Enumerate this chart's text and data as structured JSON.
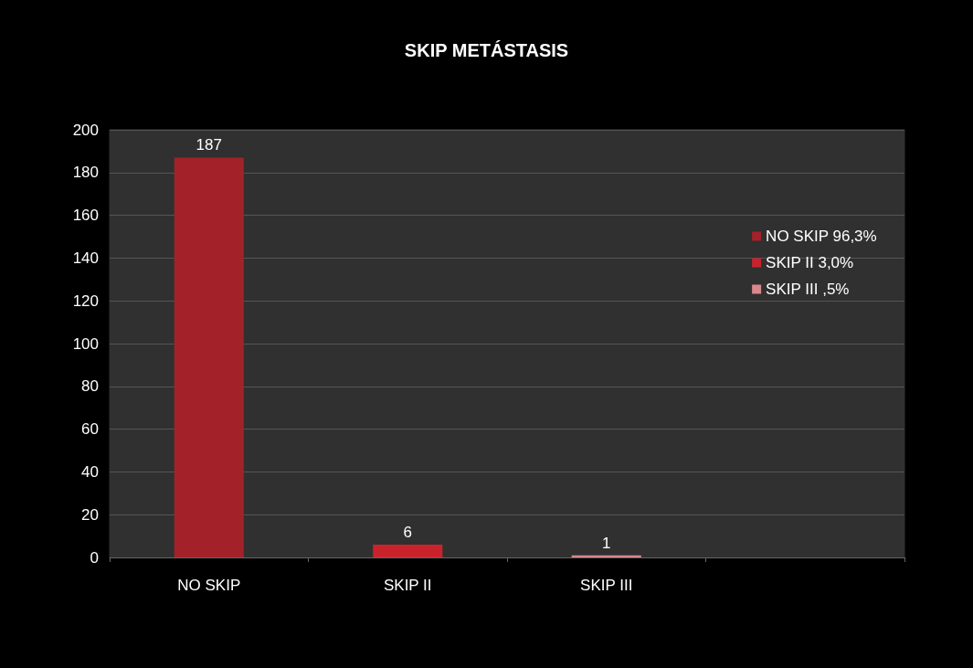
{
  "chart_data": {
    "type": "bar",
    "title": "SKIP METÁSTASIS",
    "categories": [
      "NO SKIP",
      "SKIP II",
      "SKIP III",
      null
    ],
    "stacked": true,
    "series": [
      {
        "name": "NO SKIP 96,3%",
        "color": "#a32229",
        "values": [
          187,
          null,
          null,
          null
        ]
      },
      {
        "name": "SKIP II 3,0%",
        "color": "#c8232c",
        "values": [
          null,
          6,
          null,
          null
        ]
      },
      {
        "name": "SKIP III ,5%",
        "color": "#d9888c",
        "values": [
          null,
          null,
          1,
          null
        ]
      }
    ],
    "ylim": [
      0,
      200
    ],
    "yticks": [
      0,
      20,
      40,
      60,
      80,
      100,
      120,
      140,
      160,
      180,
      200
    ],
    "grid": "y",
    "legend": "right",
    "data_labels": true
  }
}
